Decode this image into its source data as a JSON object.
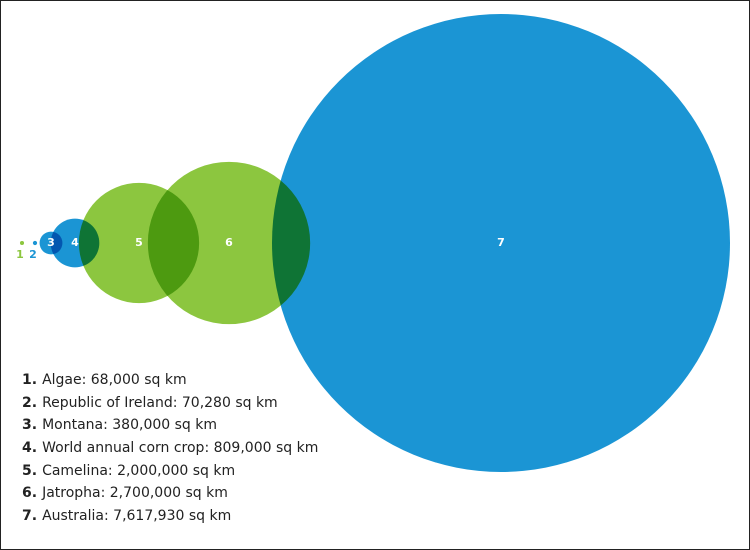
{
  "chart_data": {
    "type": "bubble",
    "markers": [
      "1",
      "2",
      "3",
      "4",
      "5",
      "6",
      "7"
    ],
    "numbers": [
      "1.",
      "2.",
      "3.",
      "4.",
      "5.",
      "6.",
      "7."
    ],
    "labels": [
      "Algae: 68,000 sq km",
      "Republic of Ireland: 70,280 sq km",
      "Montana: 380,000 sq km",
      "World annual corn crop: 809,000 sq km",
      "Camelina: 2,000,000 sq km",
      "Jatropha: 2,700,000 sq km",
      "Australia: 7,617,930 sq km"
    ],
    "values": [
      68000,
      70280,
      380000,
      809000,
      2000000,
      2700000,
      7617930
    ],
    "colors": [
      "#8cc63f",
      "#1b95d4",
      "#1b95d4",
      "#1b95d4",
      "#8cc63f",
      "#8cc63f",
      "#1b95d4"
    ]
  }
}
